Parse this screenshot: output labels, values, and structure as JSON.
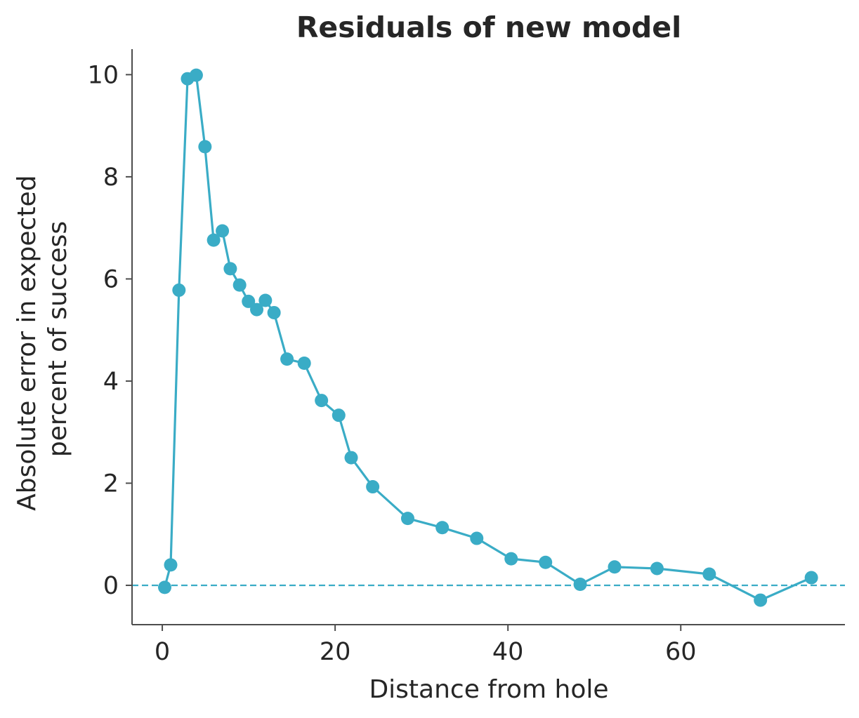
{
  "chart_data": {
    "type": "line",
    "title": "Residuals of new model",
    "xlabel": "Distance from hole",
    "ylabel": "Absolute error in expected\npercent of success",
    "xlim": [
      -3.5,
      79
    ],
    "ylim": [
      -0.77,
      10.5
    ],
    "xticks": [
      0,
      20,
      40,
      60
    ],
    "yticks": [
      0,
      2,
      4,
      6,
      8,
      10
    ],
    "grid": false,
    "reference_line": {
      "y": 0,
      "style": "dashed"
    },
    "colors": {
      "series": "#3aacc6",
      "axis": "#4d4d4d",
      "text": "#262626"
    },
    "series": [
      {
        "x": [
          0.28,
          0.97,
          1.93,
          2.92,
          3.93,
          4.94,
          5.94,
          6.95,
          7.87,
          8.95,
          9.97,
          10.93,
          11.93,
          12.93,
          14.43,
          16.43,
          18.42,
          20.42,
          21.86,
          24.35,
          28.4,
          32.4,
          36.39,
          40.37,
          44.35,
          48.36,
          52.34,
          57.25,
          63.3,
          69.22,
          75.11
        ],
        "y": [
          -0.04,
          0.4,
          5.78,
          9.92,
          9.99,
          8.59,
          6.76,
          6.94,
          6.2,
          5.88,
          5.56,
          5.4,
          5.58,
          5.34,
          4.43,
          4.35,
          3.62,
          3.33,
          2.5,
          1.93,
          1.31,
          1.13,
          0.92,
          0.52,
          0.45,
          0.02,
          0.36,
          0.33,
          0.22,
          -0.29,
          0.15
        ]
      }
    ]
  }
}
